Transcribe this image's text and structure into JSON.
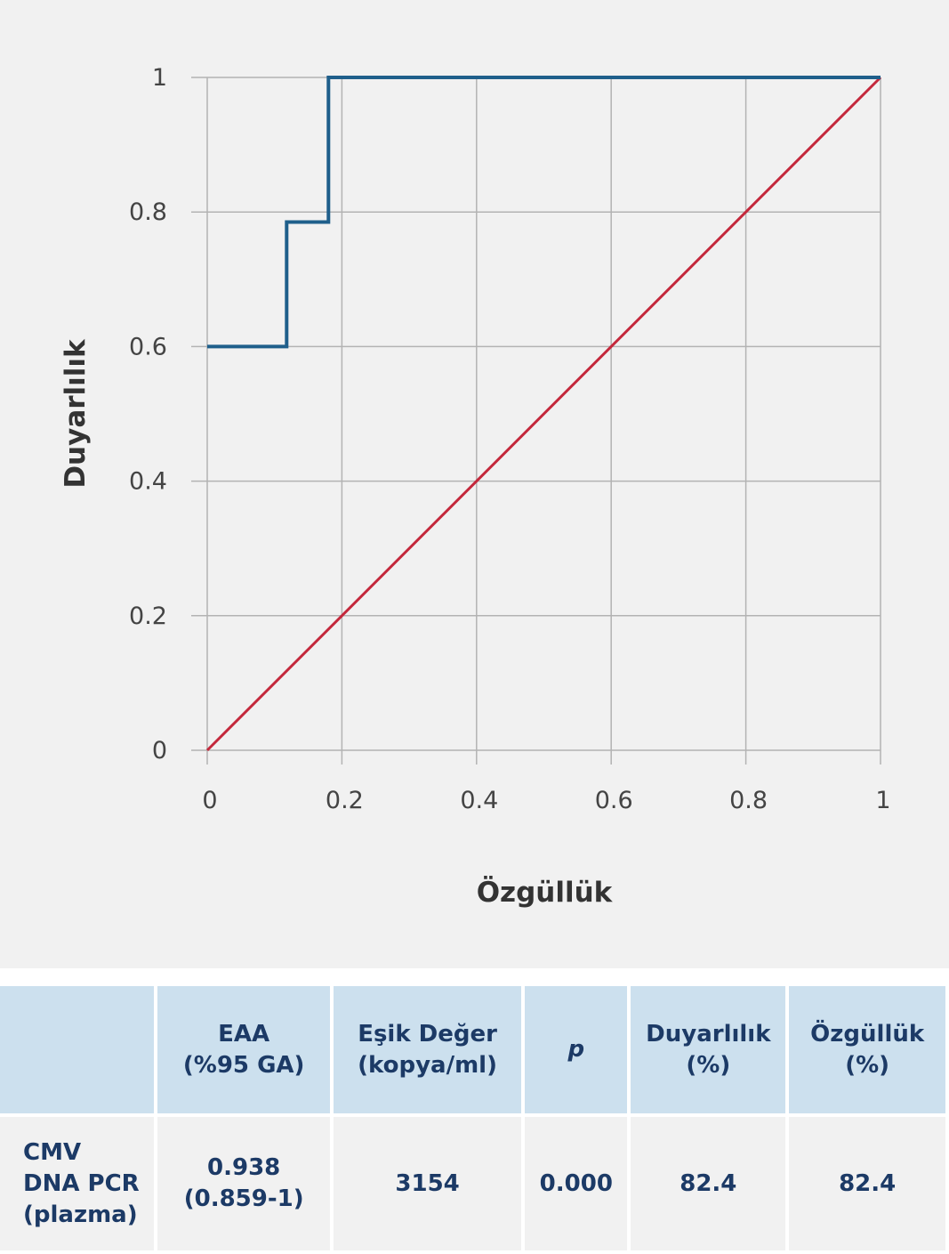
{
  "chart_data": {
    "type": "line",
    "xlabel": "Özgüllük",
    "ylabel": "Duyarlılık",
    "xlim": [
      0,
      1
    ],
    "ylim": [
      0,
      1
    ],
    "x_ticks": [
      "0",
      "0.2",
      "0.4",
      "0.6",
      "0.8",
      "1"
    ],
    "y_ticks": [
      "0",
      "0.2",
      "0.4",
      "0.6",
      "0.8",
      "1"
    ],
    "grid": true,
    "series": [
      {
        "color": "#1f5f8b",
        "x": [
          0,
          0.118,
          0.118,
          0.18,
          0.18,
          1
        ],
        "y": [
          0.6,
          0.6,
          0.785,
          0.785,
          1,
          1
        ]
      },
      {
        "color": "#c4283c",
        "x": [
          0,
          1
        ],
        "y": [
          0,
          1
        ]
      }
    ]
  },
  "table": {
    "headers": [
      {
        "lines": [
          ""
        ]
      },
      {
        "lines": [
          "EAA",
          "(%95 GA)"
        ]
      },
      {
        "lines": [
          "Eşik Değer",
          "(kopya/ml)"
        ]
      },
      {
        "lines": [
          "p"
        ],
        "italic": true
      },
      {
        "lines": [
          "Duyarlılık",
          "(%)"
        ]
      },
      {
        "lines": [
          "Özgüllük",
          "(%)"
        ]
      }
    ],
    "rows": [
      {
        "label_lines": [
          "CMV",
          "DNA PCR",
          "(plazma)"
        ],
        "eaa_lines": [
          "0.938",
          "(0.859-1)"
        ],
        "threshold": "3154",
        "p": "0.000",
        "sensitivity": "82.4",
        "specificity": "82.4"
      }
    ]
  },
  "colors": {
    "chart_background": "#f1f1f1",
    "grid": "#b3b3b3",
    "roc_curve": "#1f5f8b",
    "reference_line": "#c4283c",
    "table_header_bg": "#cce0ee",
    "table_body_bg": "#f1f1f1",
    "table_text": "#1c3a66"
  }
}
